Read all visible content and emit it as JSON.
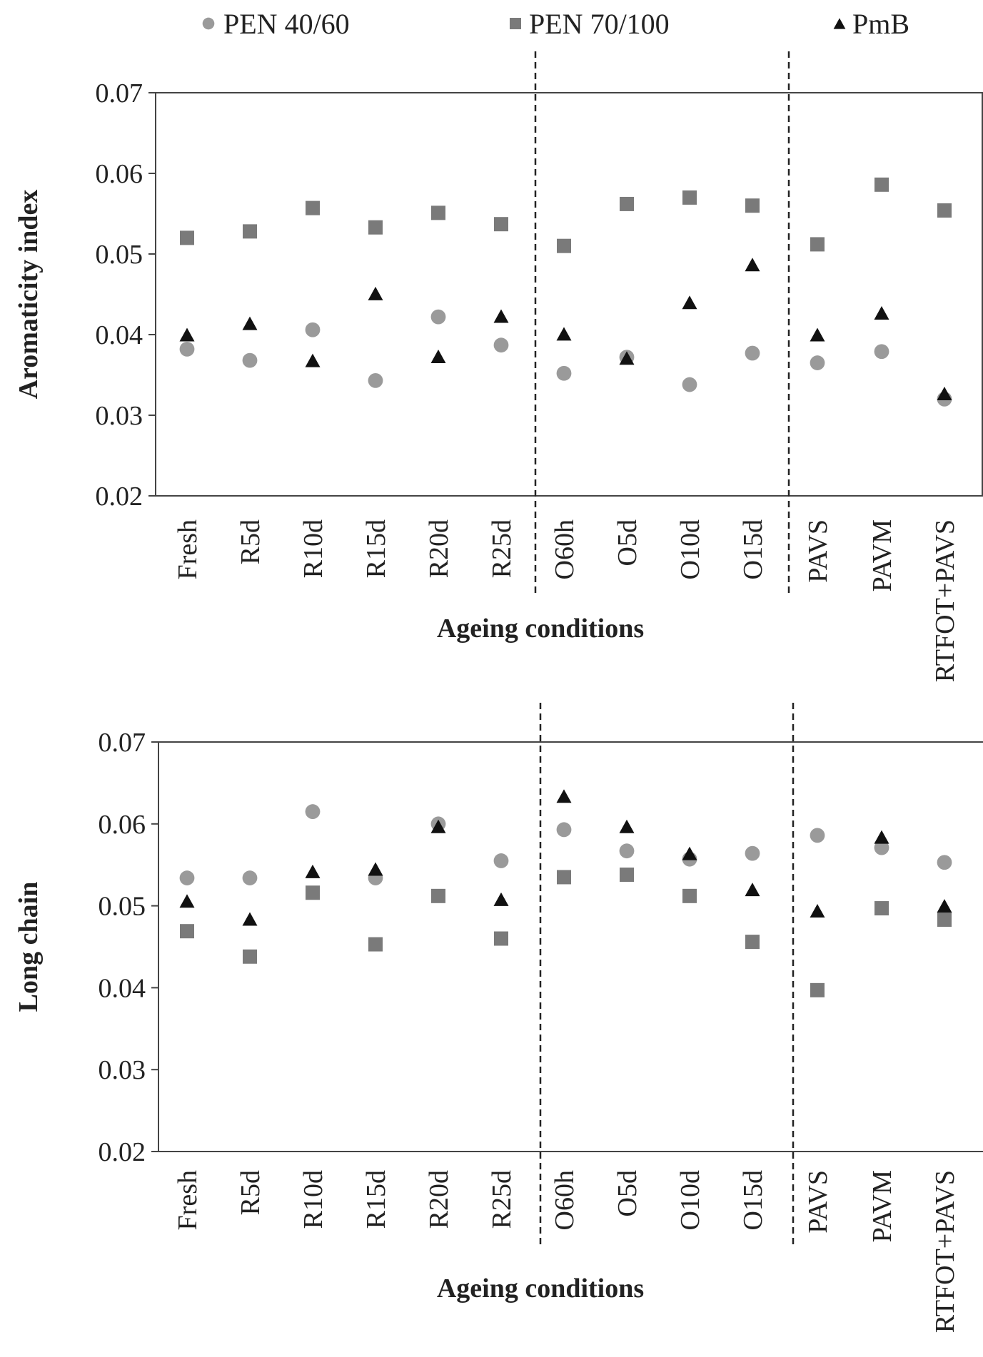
{
  "legend": [
    {
      "name": "PEN 40/60",
      "marker": "circle",
      "color": "#9a9a9a"
    },
    {
      "name": "PEN 70/100",
      "marker": "square",
      "color": "#7a7a7a"
    },
    {
      "name": "PmB",
      "marker": "triangle",
      "color": "#111111"
    }
  ],
  "chart_data": [
    {
      "type": "scatter",
      "title": "",
      "xlabel": "Ageing conditions",
      "ylabel": "Aromaticity index",
      "ylim": [
        0.02,
        0.07
      ],
      "yticks": [
        "0.02",
        "0.03",
        "0.04",
        "0.05",
        "0.06",
        "0.07"
      ],
      "grid": false,
      "categories": [
        "Fresh",
        "R5d",
        "R10d",
        "R15d",
        "R20d",
        "R25d",
        "O60h",
        "O5d",
        "O10d",
        "O15d",
        "PAVS",
        "PAVM",
        "RTFOT+PAVS"
      ],
      "group_dividers_after": [
        "R25d",
        "O15d"
      ],
      "series": [
        {
          "name": "PEN 40/60",
          "values": [
            0.0382,
            0.0368,
            0.0406,
            0.0343,
            0.0422,
            0.0387,
            0.0352,
            0.0372,
            0.0338,
            0.0377,
            0.0365,
            0.0379,
            0.032
          ]
        },
        {
          "name": "PEN 70/100",
          "values": [
            0.052,
            0.0528,
            0.0557,
            0.0533,
            0.0551,
            0.0537,
            0.051,
            0.0562,
            0.057,
            0.056,
            0.0512,
            0.0586,
            0.0554
          ]
        },
        {
          "name": "PmB",
          "values": [
            0.04,
            0.0414,
            0.0368,
            0.0451,
            0.0373,
            0.0423,
            0.0401,
            0.0371,
            0.044,
            0.0487,
            0.04,
            0.0427,
            0.0327
          ]
        }
      ]
    },
    {
      "type": "scatter",
      "title": "",
      "xlabel": "Ageing conditions",
      "ylabel": "Long chain",
      "ylim": [
        0.02,
        0.07
      ],
      "yticks": [
        "0.02",
        "0.03",
        "0.04",
        "0.05",
        "0.06",
        "0.07"
      ],
      "grid": false,
      "categories": [
        "Fresh",
        "R5d",
        "R10d",
        "R15d",
        "R20d",
        "R25d",
        "O60h",
        "O5d",
        "O10d",
        "O15d",
        "PAVS",
        "PAVM",
        "RTFOT+PAVS"
      ],
      "group_dividers_after": [
        "R25d",
        "O15d"
      ],
      "series": [
        {
          "name": "PEN 40/60",
          "values": [
            0.0534,
            0.0534,
            0.0615,
            0.0534,
            0.06,
            0.0555,
            0.0593,
            0.0567,
            0.0557,
            0.0564,
            0.0586,
            0.0571,
            0.0553
          ]
        },
        {
          "name": "PEN 70/100",
          "values": [
            0.0469,
            0.0438,
            0.0516,
            0.0453,
            0.0512,
            0.046,
            0.0535,
            0.0538,
            0.0512,
            0.0456,
            0.0397,
            0.0497,
            0.0483
          ]
        },
        {
          "name": "PmB",
          "values": [
            0.0506,
            0.0484,
            0.0542,
            0.0545,
            0.0597,
            0.0508,
            0.0634,
            0.0597,
            0.0564,
            0.052,
            0.0494,
            0.0584,
            0.05
          ]
        }
      ]
    }
  ]
}
